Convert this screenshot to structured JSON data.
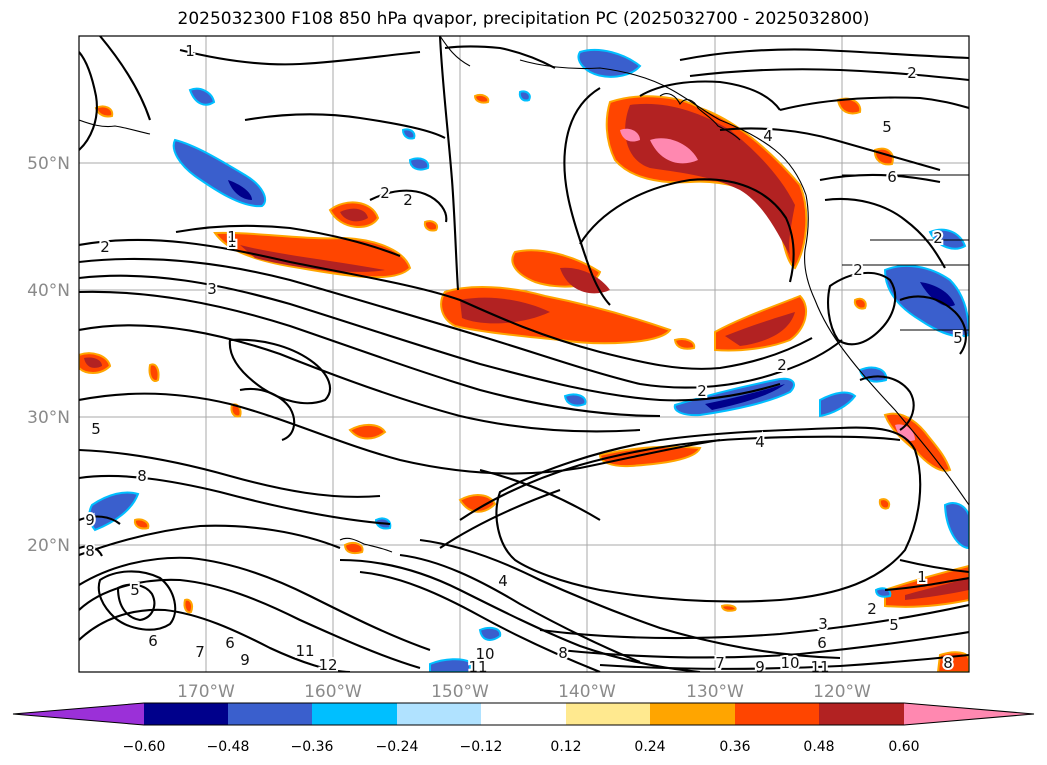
{
  "title": "2025032300 F108 850 hPa qvapor, precipitation PC (2025032700 - 2025032800)",
  "lat_labels": [
    "50°N",
    "40°N",
    "30°N",
    "20°N"
  ],
  "lon_labels": [
    "170°W",
    "160°W",
    "150°W",
    "140°W",
    "130°W",
    "120°W"
  ],
  "colorbar": {
    "ticks": [
      "−0.60",
      "−0.48",
      "−0.36",
      "−0.24",
      "−0.12",
      "0.12",
      "0.24",
      "0.36",
      "0.48",
      "0.60"
    ],
    "colors": [
      "#9b30d8",
      "#00008b",
      "#3a5fcd",
      "#00bfff",
      "#b0e2ff",
      "#ffffff",
      "#ffe98f",
      "#ffa500",
      "#ff4500",
      "#b22222",
      "#ff88b0"
    ]
  },
  "contour_labels": [
    "1",
    "2",
    "2",
    "2",
    "1",
    "2",
    "3",
    "5",
    "8",
    "9",
    "8",
    "5",
    "6",
    "7",
    "6",
    "9",
    "11",
    "12",
    "10",
    "11",
    "8",
    "7",
    "9",
    "10",
    "11",
    "4",
    "4",
    "2",
    "2",
    "1",
    "2",
    "5",
    "4",
    "3",
    "5",
    "6",
    "2",
    "8",
    "2",
    "5",
    "6",
    "1"
  ]
}
